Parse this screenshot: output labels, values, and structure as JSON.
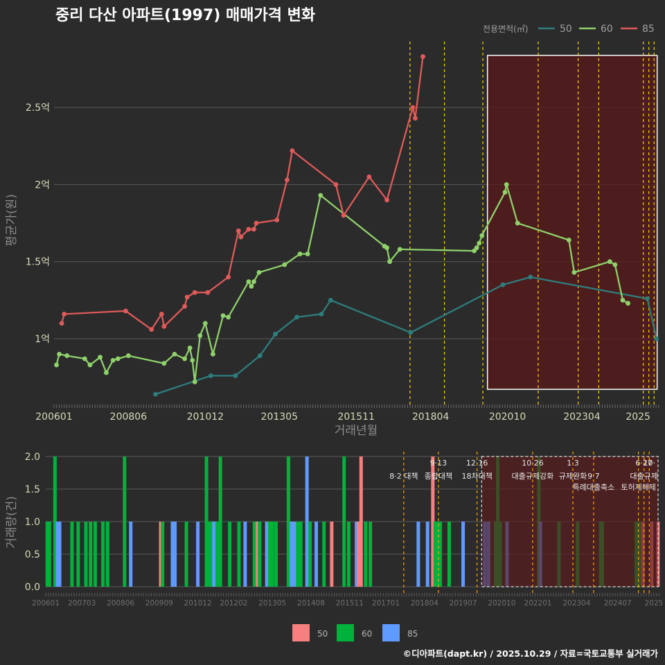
{
  "colors": {
    "background": "#2b2b2b",
    "grid": "#5a5a5a",
    "s50": "#2e7d7d",
    "s60": "#8fd16b",
    "s85": "#e05a5a",
    "bar50": "#f77f7f",
    "bar60": "#00b23c",
    "bar85": "#5f9aff",
    "policy": "#ffd700",
    "policy_bottom": "#ffa500",
    "highlight_fill": "#5a1a1a"
  },
  "chart_data": [
    {
      "type": "line",
      "title": "중리 다산 아파트(1997) 매매가격 변화",
      "xlabel": "거래년월",
      "ylabel": "평균가(원)",
      "x_range": [
        2006.0,
        2025.65
      ],
      "ylim": [
        0.6,
        2.95
      ],
      "y_ticks": [
        {
          "v": 1.0,
          "label": "1억"
        },
        {
          "v": 1.5,
          "label": "1.5억"
        },
        {
          "v": 2.0,
          "label": "2억"
        },
        {
          "v": 2.5,
          "label": "2.5억"
        }
      ],
      "x_ticks": [
        {
          "v": 2006.0,
          "label": "200601"
        },
        {
          "v": 2008.42,
          "label": "200806"
        },
        {
          "v": 2010.92,
          "label": "201012"
        },
        {
          "v": 2013.33,
          "label": "201305"
        },
        {
          "v": 2015.83,
          "label": "201511"
        },
        {
          "v": 2018.25,
          "label": "201804"
        },
        {
          "v": 2020.75,
          "label": "202010"
        },
        {
          "v": 2023.17,
          "label": "202304"
        },
        {
          "v": 2025.0,
          "label": "2025"
        }
      ],
      "legend_title": "전용면적(㎡)",
      "series": [
        {
          "name": "50",
          "color_key": "s50",
          "points": [
            [
              2009.3,
              0.64
            ],
            [
              2011.1,
              0.76
            ],
            [
              2011.9,
              0.76
            ],
            [
              2012.7,
              0.89
            ],
            [
              2013.2,
              1.03
            ],
            [
              2013.9,
              1.14
            ],
            [
              2014.7,
              1.16
            ],
            [
              2015.0,
              1.25
            ],
            [
              2017.6,
              1.04
            ],
            [
              2020.6,
              1.35
            ],
            [
              2021.5,
              1.4
            ],
            [
              2025.3,
              1.26
            ],
            [
              2025.6,
              1.0
            ]
          ]
        },
        {
          "name": "60",
          "color_key": "s60",
          "points": [
            [
              2006.08,
              0.83
            ],
            [
              2006.17,
              0.9
            ],
            [
              2006.42,
              0.89
            ],
            [
              2007.0,
              0.87
            ],
            [
              2007.17,
              0.83
            ],
            [
              2007.5,
              0.88
            ],
            [
              2007.7,
              0.78
            ],
            [
              2007.92,
              0.86
            ],
            [
              2008.08,
              0.87
            ],
            [
              2008.42,
              0.89
            ],
            [
              2009.58,
              0.84
            ],
            [
              2009.92,
              0.9
            ],
            [
              2010.25,
              0.87
            ],
            [
              2010.42,
              0.94
            ],
            [
              2010.5,
              0.86
            ],
            [
              2010.58,
              0.72
            ],
            [
              2010.75,
              1.02
            ],
            [
              2010.92,
              1.1
            ],
            [
              2011.17,
              0.9
            ],
            [
              2011.5,
              1.15
            ],
            [
              2011.67,
              1.14
            ],
            [
              2012.33,
              1.37
            ],
            [
              2012.42,
              1.34
            ],
            [
              2012.5,
              1.37
            ],
            [
              2012.67,
              1.43
            ],
            [
              2013.5,
              1.48
            ],
            [
              2014.0,
              1.55
            ],
            [
              2014.25,
              1.55
            ],
            [
              2014.67,
              1.93
            ],
            [
              2016.75,
              1.6
            ],
            [
              2016.83,
              1.59
            ],
            [
              2016.92,
              1.5
            ],
            [
              2017.25,
              1.58
            ],
            [
              2019.67,
              1.57
            ],
            [
              2019.75,
              1.59
            ],
            [
              2019.83,
              1.62
            ],
            [
              2019.92,
              1.67
            ],
            [
              2020.67,
              1.95
            ],
            [
              2020.72,
              2.0
            ],
            [
              2021.08,
              1.75
            ],
            [
              2022.75,
              1.64
            ],
            [
              2022.92,
              1.43
            ],
            [
              2024.08,
              1.5
            ],
            [
              2024.25,
              1.48
            ],
            [
              2024.5,
              1.25
            ],
            [
              2024.67,
              1.23
            ]
          ]
        },
        {
          "name": "85",
          "color_key": "s85",
          "points": [
            [
              2006.25,
              1.1
            ],
            [
              2006.33,
              1.16
            ],
            [
              2008.33,
              1.18
            ],
            [
              2009.17,
              1.06
            ],
            [
              2009.5,
              1.16
            ],
            [
              2009.58,
              1.08
            ],
            [
              2010.25,
              1.21
            ],
            [
              2010.33,
              1.27
            ],
            [
              2010.58,
              1.3
            ],
            [
              2011.0,
              1.3
            ],
            [
              2011.67,
              1.4
            ],
            [
              2012.0,
              1.7
            ],
            [
              2012.08,
              1.66
            ],
            [
              2012.33,
              1.71
            ],
            [
              2012.5,
              1.71
            ],
            [
              2012.58,
              1.75
            ],
            [
              2013.25,
              1.77
            ],
            [
              2013.58,
              2.03
            ],
            [
              2013.75,
              2.22
            ],
            [
              2015.17,
              2.0
            ],
            [
              2015.42,
              1.8
            ],
            [
              2016.25,
              2.05
            ],
            [
              2016.83,
              1.9
            ],
            [
              2017.67,
              2.5
            ],
            [
              2017.75,
              2.43
            ],
            [
              2018.0,
              2.83
            ]
          ]
        }
      ],
      "policy_lines": [
        2017.58,
        2018.7,
        2019.95,
        2021.75,
        2023.05,
        2023.72,
        2025.17,
        2025.35,
        2025.52
      ],
      "highlight_range": [
        2020.1,
        2025.62
      ]
    },
    {
      "type": "bar",
      "ylabel": "거래량(건)",
      "ylim": [
        0,
        2.0
      ],
      "y_ticks": [
        {
          "v": 0.0,
          "label": "0.0"
        },
        {
          "v": 0.5,
          "label": "0.5"
        },
        {
          "v": 1.0,
          "label": "1.0"
        },
        {
          "v": 1.5,
          "label": "1.5"
        },
        {
          "v": 2.0,
          "label": "2.0"
        }
      ],
      "x_range": [
        2006.0,
        2025.85
      ],
      "x_ticks": [
        {
          "v": 2006.0,
          "label": "200601"
        },
        {
          "v": 2007.17,
          "label": "200703"
        },
        {
          "v": 2008.42,
          "label": "200806"
        },
        {
          "v": 2009.67,
          "label": "200909"
        },
        {
          "v": 2010.92,
          "label": "201012"
        },
        {
          "v": 2012.08,
          "label": "201202"
        },
        {
          "v": 2013.33,
          "label": "201305"
        },
        {
          "v": 2014.58,
          "label": "201408"
        },
        {
          "v": 2015.83,
          "label": "201511"
        },
        {
          "v": 2017.0,
          "label": "201701"
        },
        {
          "v": 2018.25,
          "label": "201804"
        },
        {
          "v": 2019.5,
          "label": "201907"
        },
        {
          "v": 2020.75,
          "label": "202010"
        },
        {
          "v": 2021.92,
          "label": "202201"
        },
        {
          "v": 2023.17,
          "label": "202304"
        },
        {
          "v": 2024.5,
          "label": "202407"
        },
        {
          "v": 2025.67,
          "label": "2025"
        }
      ],
      "legend": [
        "50",
        "60",
        "85"
      ],
      "bars": [
        [
          2006.05,
          1,
          "60"
        ],
        [
          2006.12,
          1,
          "60"
        ],
        [
          2006.3,
          2,
          "60"
        ],
        [
          2006.38,
          1,
          "85"
        ],
        [
          2006.45,
          1,
          "85"
        ],
        [
          2006.85,
          1,
          "60"
        ],
        [
          2007.05,
          1,
          "60"
        ],
        [
          2007.3,
          1,
          "60"
        ],
        [
          2007.45,
          1,
          "60"
        ],
        [
          2007.6,
          1,
          "60"
        ],
        [
          2007.85,
          1,
          "60"
        ],
        [
          2008.0,
          1,
          "60"
        ],
        [
          2008.55,
          2,
          "60"
        ],
        [
          2008.75,
          1,
          "85"
        ],
        [
          2009.72,
          1,
          "50"
        ],
        [
          2009.78,
          1,
          "60"
        ],
        [
          2010.1,
          1,
          "85"
        ],
        [
          2010.18,
          1,
          "85"
        ],
        [
          2010.55,
          1,
          "60"
        ],
        [
          2010.92,
          1,
          "85"
        ],
        [
          2011.2,
          2,
          "60"
        ],
        [
          2011.28,
          1,
          "60"
        ],
        [
          2011.36,
          1,
          "60"
        ],
        [
          2011.44,
          1,
          "85"
        ],
        [
          2011.55,
          1,
          "60"
        ],
        [
          2011.65,
          2,
          "60"
        ],
        [
          2011.95,
          1,
          "60"
        ],
        [
          2012.25,
          1,
          "60"
        ],
        [
          2012.45,
          1,
          "85"
        ],
        [
          2012.75,
          1,
          "60"
        ],
        [
          2012.85,
          1,
          "50"
        ],
        [
          2012.92,
          1,
          "60"
        ],
        [
          2013.15,
          1,
          "85"
        ],
        [
          2013.25,
          1,
          "60"
        ],
        [
          2013.33,
          1,
          "60"
        ],
        [
          2013.45,
          1,
          "60"
        ],
        [
          2013.85,
          2,
          "60"
        ],
        [
          2013.95,
          1,
          "85"
        ],
        [
          2014.05,
          1,
          "85"
        ],
        [
          2014.15,
          1,
          "60"
        ],
        [
          2014.25,
          1,
          "60"
        ],
        [
          2014.45,
          2,
          "85"
        ],
        [
          2014.55,
          1,
          "60"
        ],
        [
          2014.75,
          1,
          "85"
        ],
        [
          2015.0,
          1,
          "60"
        ],
        [
          2015.25,
          1,
          "50"
        ],
        [
          2015.65,
          2,
          "60"
        ],
        [
          2015.8,
          1,
          "60"
        ],
        [
          2016.05,
          1,
          "85"
        ],
        [
          2016.12,
          1,
          "50"
        ],
        [
          2016.2,
          2,
          "50"
        ],
        [
          2016.35,
          1,
          "60"
        ],
        [
          2016.5,
          1,
          "60"
        ],
        [
          2018.05,
          1,
          "85"
        ],
        [
          2018.35,
          1,
          "85"
        ],
        [
          2018.52,
          2,
          "50"
        ],
        [
          2018.6,
          1,
          "60"
        ],
        [
          2018.68,
          1,
          "60"
        ],
        [
          2018.76,
          1,
          "60"
        ],
        [
          2019.05,
          1,
          "60"
        ],
        [
          2019.5,
          1,
          "85"
        ],
        [
          2020.2,
          1,
          "85"
        ],
        [
          2020.32,
          1,
          "85"
        ],
        [
          2020.55,
          1,
          "60"
        ],
        [
          2020.62,
          2,
          "60"
        ],
        [
          2020.7,
          1,
          "60"
        ],
        [
          2020.92,
          1,
          "85"
        ],
        [
          2021.95,
          2,
          "60"
        ],
        [
          2022.0,
          1,
          "85"
        ],
        [
          2022.6,
          1,
          "60"
        ],
        [
          2023.2,
          1,
          "60"
        ],
        [
          2023.95,
          1,
          "60"
        ],
        [
          2024.0,
          1,
          "60"
        ],
        [
          2025.1,
          1,
          "60"
        ],
        [
          2025.2,
          1,
          "60"
        ],
        [
          2025.32,
          1,
          "50"
        ],
        [
          2025.6,
          1,
          "50"
        ],
        [
          2025.8,
          1,
          "50"
        ]
      ],
      "policy_lines": [
        2017.58,
        2018.7,
        2019.95,
        2021.75,
        2023.05,
        2023.72,
        2025.17,
        2025.35,
        2025.52
      ],
      "highlight_range": [
        2020.1,
        2025.85
      ],
      "annotations": [
        {
          "x": 2017.58,
          "row": 1,
          "text": "8·2 대책"
        },
        {
          "x": 2018.7,
          "row": 0,
          "text": "9·13"
        },
        {
          "x": 2018.7,
          "row": 1,
          "text": "종합대책"
        },
        {
          "x": 2019.95,
          "row": 0,
          "text": "12·16"
        },
        {
          "x": 2019.95,
          "row": 1,
          "text": "18차대책"
        },
        {
          "x": 2021.75,
          "row": 0,
          "text": "10·26"
        },
        {
          "x": 2021.75,
          "row": 1,
          "text": "대출규제강화"
        },
        {
          "x": 2023.05,
          "row": 0,
          "text": "1·3"
        },
        {
          "x": 2023.05,
          "row": 1,
          "text": "규제완화"
        },
        {
          "x": 2023.72,
          "row": 1,
          "text": "9·7"
        },
        {
          "x": 2023.72,
          "row": 2,
          "text": "특례대출축소"
        },
        {
          "x": 2025.17,
          "row": 2,
          "text": "토허제해제"
        },
        {
          "x": 2025.35,
          "row": 0,
          "text": "6·27"
        },
        {
          "x": 2025.35,
          "row": 1,
          "text": "대출규제"
        },
        {
          "x": 2025.52,
          "row": 0,
          "text": "10·"
        }
      ]
    }
  ],
  "footer": "©디아파트(dapt.kr) / 2025.10.29 / 자료=국토교통부 실거래가"
}
